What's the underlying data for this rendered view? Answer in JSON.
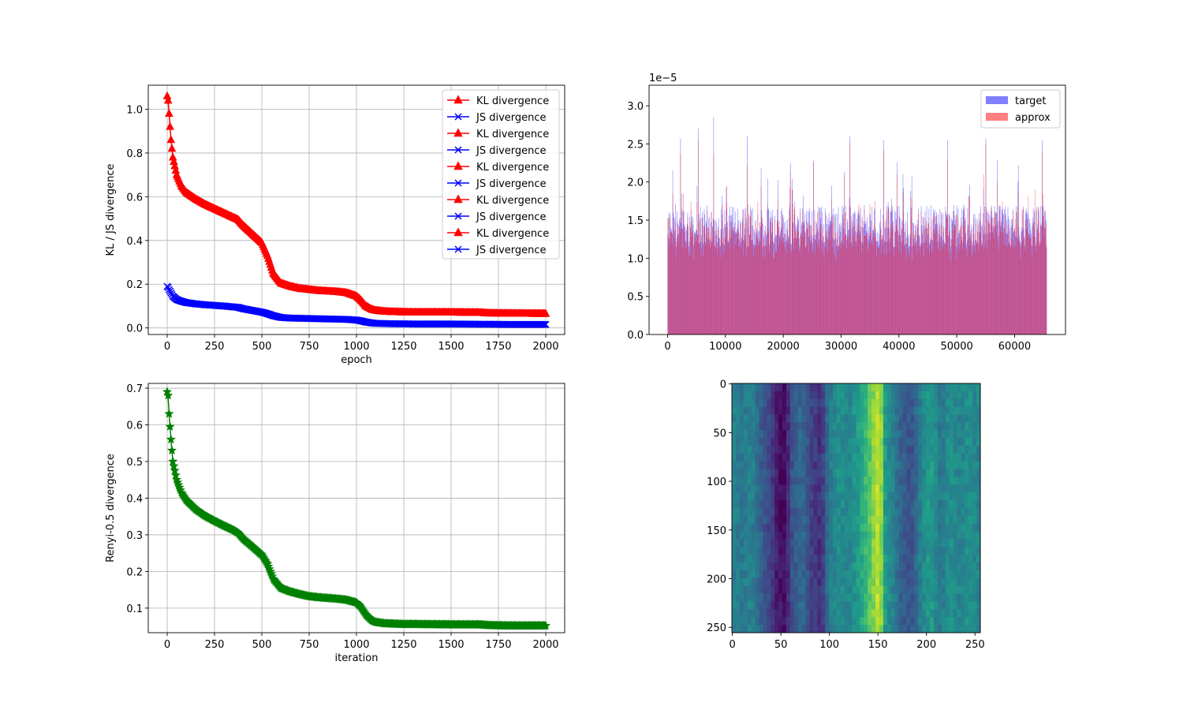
{
  "chart_data": [
    {
      "type": "line",
      "xlabel": "epoch",
      "ylabel": "KL / JS divergence",
      "xlim": [
        -100,
        2100
      ],
      "ylim": [
        -0.03,
        1.11
      ],
      "xticks": [
        0,
        250,
        500,
        750,
        1000,
        1250,
        1500,
        1750,
        2000
      ],
      "xtick_labels": [
        "0",
        "250",
        "500",
        "750",
        "1000",
        "1250",
        "1500",
        "1750",
        "2000"
      ],
      "yticks": [
        0.0,
        0.2,
        0.4,
        0.6,
        0.8,
        1.0
      ],
      "ytick_labels": [
        "0.0",
        "0.2",
        "0.4",
        "0.6",
        "0.8",
        "1.0"
      ],
      "grid": true,
      "legend_placement": "upper right",
      "legend": [
        "KL divergence",
        "JS divergence",
        "KL divergence",
        "JS divergence",
        "KL divergence",
        "JS divergence",
        "KL divergence",
        "JS divergence",
        "KL divergence",
        "JS divergence"
      ],
      "series": [
        {
          "name": "KL divergence",
          "color": "#ff0000",
          "marker": "triangle",
          "x": [
            0,
            5,
            10,
            20,
            30,
            50,
            75,
            100,
            150,
            200,
            250,
            300,
            350,
            375,
            400,
            450,
            500,
            530,
            560,
            600,
            650,
            700,
            750,
            800,
            900,
            950,
            1000,
            1020,
            1050,
            1080,
            1100,
            1150,
            1200,
            1250,
            1300,
            1500,
            1650,
            1700,
            1800,
            2000
          ],
          "values": [
            1.06,
            1.04,
            0.98,
            0.86,
            0.78,
            0.7,
            0.65,
            0.62,
            0.59,
            0.565,
            0.545,
            0.525,
            0.505,
            0.495,
            0.47,
            0.43,
            0.39,
            0.33,
            0.25,
            0.205,
            0.19,
            0.18,
            0.175,
            0.17,
            0.165,
            0.16,
            0.145,
            0.13,
            0.1,
            0.085,
            0.08,
            0.075,
            0.073,
            0.072,
            0.071,
            0.071,
            0.07,
            0.067,
            0.066,
            0.065
          ]
        },
        {
          "name": "JS divergence",
          "color": "#0000ff",
          "marker": "x",
          "x": [
            0,
            5,
            10,
            20,
            30,
            50,
            75,
            100,
            150,
            200,
            250,
            300,
            350,
            375,
            400,
            450,
            500,
            530,
            560,
            600,
            650,
            700,
            750,
            800,
            900,
            950,
            1000,
            1020,
            1050,
            1080,
            1100,
            1150,
            1200,
            1250,
            1300,
            1500,
            1650,
            1700,
            1800,
            2000
          ],
          "values": [
            0.19,
            0.185,
            0.175,
            0.16,
            0.145,
            0.13,
            0.122,
            0.116,
            0.11,
            0.106,
            0.103,
            0.1,
            0.096,
            0.094,
            0.088,
            0.08,
            0.072,
            0.065,
            0.056,
            0.048,
            0.045,
            0.044,
            0.043,
            0.042,
            0.04,
            0.039,
            0.036,
            0.033,
            0.027,
            0.023,
            0.021,
            0.02,
            0.019,
            0.019,
            0.018,
            0.018,
            0.017,
            0.017,
            0.016,
            0.016
          ]
        }
      ]
    },
    {
      "type": "bar",
      "offset_label": "1e−5",
      "legend_placement": "upper right",
      "legend": [
        "target",
        "approx"
      ],
      "xlim": [
        -3200,
        68800
      ],
      "ylim": [
        0,
        3.27
      ],
      "xticks": [
        0,
        10000,
        20000,
        30000,
        40000,
        50000,
        60000
      ],
      "xtick_labels": [
        "0",
        "10000",
        "20000",
        "30000",
        "40000",
        "50000",
        "60000"
      ],
      "yticks": [
        0.0,
        0.5,
        1.0,
        1.5,
        2.0,
        2.5,
        3.0
      ],
      "ytick_labels": [
        "0.0",
        "0.5",
        "1.0",
        "1.5",
        "2.0",
        "2.5",
        "3.0"
      ],
      "grid": false,
      "series": [
        {
          "name": "target",
          "color": "#0000ff",
          "alpha": 0.5,
          "value_range": [
            0,
            2.85
          ],
          "approx_peak_values": [
            2.57,
            2.7,
            2.85,
            2.6,
            2.6,
            2.55,
            2.55,
            2.57,
            2.55,
            2.6,
            2.75,
            2.6,
            2.6,
            2.68,
            2.6,
            2.65
          ]
        },
        {
          "name": "approx",
          "color": "#ff0000",
          "alpha": 0.5,
          "value_range": [
            0,
            2.3
          ],
          "approx_peak_values": [
            2.12,
            2.1,
            2.2,
            2.1,
            2.2,
            2.1,
            2.1,
            2.2
          ]
        }
      ],
      "x_extent": [
        0,
        65535
      ]
    },
    {
      "type": "line",
      "xlabel": "iteration",
      "ylabel": "Renyi-0.5 divergence",
      "xlim": [
        -100,
        2100
      ],
      "ylim": [
        0.033,
        0.713
      ],
      "xticks": [
        0,
        250,
        500,
        750,
        1000,
        1250,
        1500,
        1750,
        2000
      ],
      "xtick_labels": [
        "0",
        "250",
        "500",
        "750",
        "1000",
        "1250",
        "1500",
        "1750",
        "2000"
      ],
      "yticks": [
        0.1,
        0.2,
        0.3,
        0.4,
        0.5,
        0.6,
        0.7
      ],
      "ytick_labels": [
        "0.1",
        "0.2",
        "0.3",
        "0.4",
        "0.5",
        "0.6",
        "0.7"
      ],
      "grid": true,
      "series": [
        {
          "color": "#008000",
          "marker": "star",
          "x": [
            0,
            5,
            10,
            20,
            30,
            50,
            75,
            100,
            150,
            200,
            250,
            300,
            350,
            375,
            400,
            450,
            500,
            530,
            560,
            600,
            650,
            700,
            750,
            800,
            900,
            950,
            1000,
            1020,
            1050,
            1080,
            1100,
            1150,
            1200,
            1250,
            1300,
            1500,
            1650,
            1700,
            1800,
            2000
          ],
          "values": [
            0.69,
            0.68,
            0.63,
            0.56,
            0.5,
            0.45,
            0.415,
            0.395,
            0.37,
            0.352,
            0.338,
            0.325,
            0.313,
            0.305,
            0.29,
            0.268,
            0.245,
            0.22,
            0.18,
            0.155,
            0.145,
            0.138,
            0.132,
            0.129,
            0.125,
            0.122,
            0.115,
            0.105,
            0.082,
            0.067,
            0.062,
            0.058,
            0.057,
            0.056,
            0.056,
            0.055,
            0.055,
            0.053,
            0.052,
            0.052
          ]
        }
      ]
    },
    {
      "type": "heatmap",
      "colormap": "viridis",
      "xlim": [
        0,
        255
      ],
      "ylim": [
        255,
        0
      ],
      "xticks": [
        0,
        50,
        100,
        150,
        200,
        250
      ],
      "xtick_labels": [
        "0",
        "50",
        "100",
        "150",
        "200",
        "250"
      ],
      "yticks": [
        0,
        50,
        100,
        150,
        200,
        250
      ],
      "ytick_labels": [
        "0",
        "50",
        "100",
        "150",
        "200",
        "250"
      ],
      "grid": false,
      "column_profile": [
        {
          "col": 0,
          "v": 0.45
        },
        {
          "col": 10,
          "v": 0.4
        },
        {
          "col": 20,
          "v": 0.45
        },
        {
          "col": 30,
          "v": 0.3
        },
        {
          "col": 40,
          "v": 0.2
        },
        {
          "col": 48,
          "v": 0.05
        },
        {
          "col": 55,
          "v": 0.03
        },
        {
          "col": 62,
          "v": 0.25
        },
        {
          "col": 72,
          "v": 0.35
        },
        {
          "col": 82,
          "v": 0.2
        },
        {
          "col": 92,
          "v": 0.12
        },
        {
          "col": 100,
          "v": 0.4
        },
        {
          "col": 110,
          "v": 0.5
        },
        {
          "col": 120,
          "v": 0.45
        },
        {
          "col": 130,
          "v": 0.55
        },
        {
          "col": 140,
          "v": 0.7
        },
        {
          "col": 148,
          "v": 0.85
        },
        {
          "col": 152,
          "v": 0.95
        },
        {
          "col": 158,
          "v": 0.55
        },
        {
          "col": 165,
          "v": 0.45
        },
        {
          "col": 175,
          "v": 0.3
        },
        {
          "col": 185,
          "v": 0.25
        },
        {
          "col": 195,
          "v": 0.45
        },
        {
          "col": 205,
          "v": 0.55
        },
        {
          "col": 215,
          "v": 0.4
        },
        {
          "col": 225,
          "v": 0.5
        },
        {
          "col": 235,
          "v": 0.45
        },
        {
          "col": 245,
          "v": 0.5
        },
        {
          "col": 255,
          "v": 0.45
        }
      ]
    }
  ]
}
